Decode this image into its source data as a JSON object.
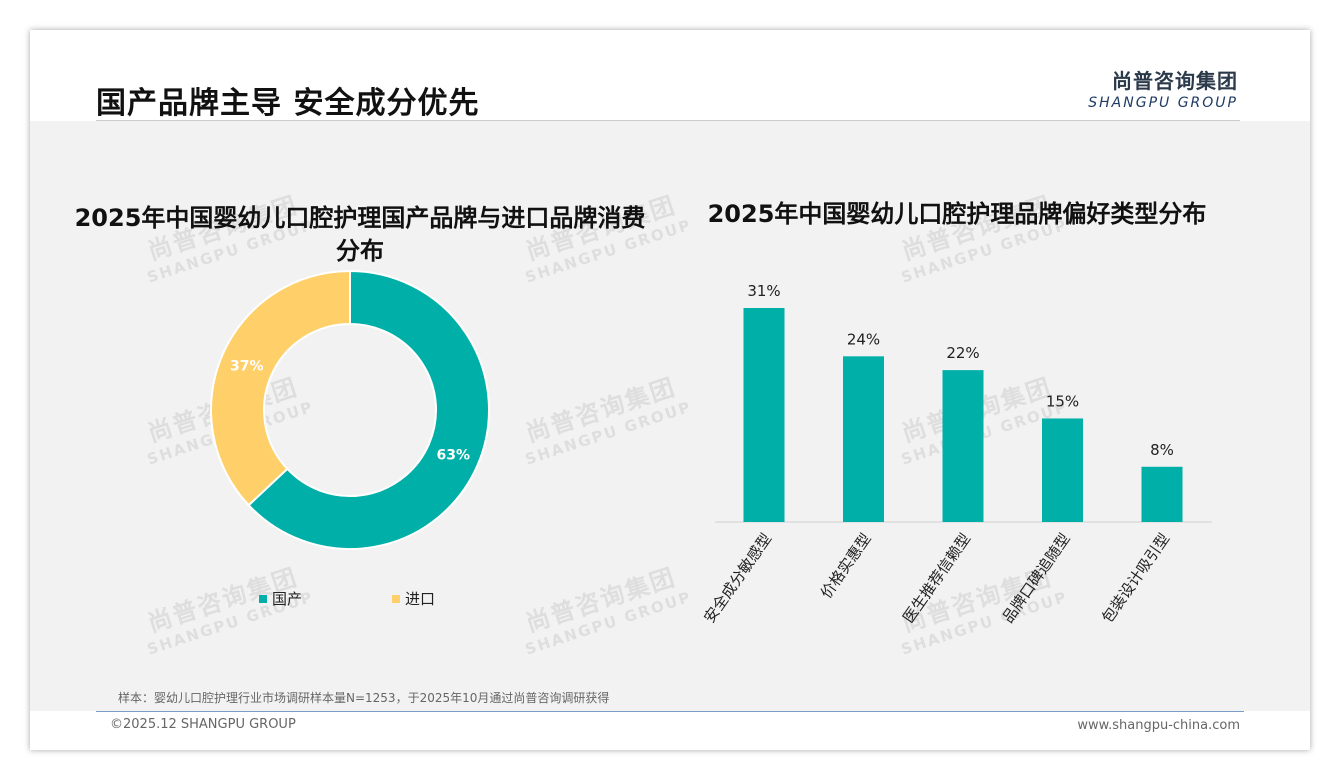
{
  "header": {
    "title": "国产品牌主导 安全成分优先",
    "logo_cn": "尚普咨询集团",
    "logo_en": "SHANGPU GROUP"
  },
  "watermark": {
    "cn": "尚普咨询集团",
    "en": "SHANGPU GROUP"
  },
  "colors": {
    "teal": "#00b0a8",
    "yellow": "#ffd06a"
  },
  "chart_data": [
    {
      "type": "pie",
      "donut": true,
      "title": "2025年中国婴幼儿口腔护理国产品牌与进口品牌消费分布",
      "title_line1": "2025年中国婴幼儿口腔护理国产品牌与进口品牌消费",
      "title_line2": "分布",
      "categories": [
        "国产",
        "进口"
      ],
      "values": [
        63,
        37
      ],
      "labels": [
        "63%",
        "37%"
      ],
      "colors": [
        "#00b0a8",
        "#ffd06a"
      ],
      "legend_position": "bottom"
    },
    {
      "type": "bar",
      "title": "2025年中国婴幼儿口腔护理品牌偏好类型分布",
      "categories": [
        "安全成分敏感型",
        "价格实惠型",
        "医生推荐信赖型",
        "品牌口碑追随型",
        "包装设计吸引型"
      ],
      "values": [
        31,
        24,
        22,
        15,
        8
      ],
      "labels": [
        "31%",
        "24%",
        "22%",
        "15%",
        "8%"
      ],
      "color": "#00b0a8",
      "unit": "%",
      "grid": false
    }
  ],
  "footer": {
    "note": "样本：婴幼儿口腔护理行业市场调研样本量N=1253，于2025年10月通过尚普咨询调研获得",
    "copyright": "©2025.12 SHANGPU GROUP",
    "website": "www.shangpu-china.com"
  }
}
